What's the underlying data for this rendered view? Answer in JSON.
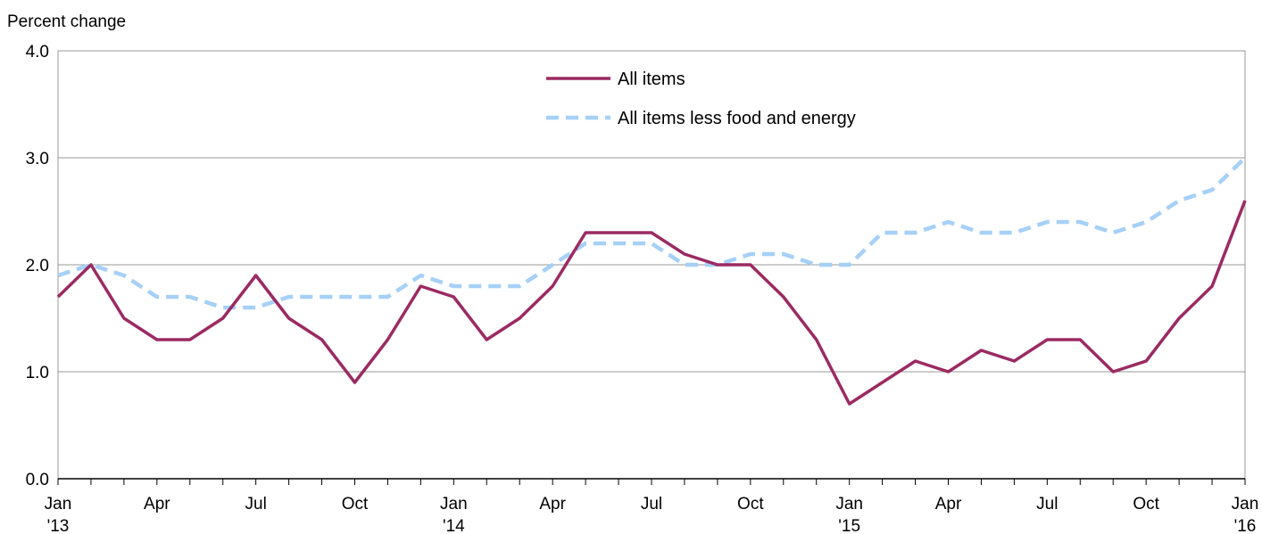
{
  "chart_data": {
    "type": "line",
    "ylabel": "Percent change",
    "ylim": [
      0,
      4
    ],
    "yticks": [
      "0.0",
      "1.0",
      "2.0",
      "3.0",
      "4.0"
    ],
    "grid": true,
    "legend_position": "top-center",
    "x_tick_labels": [
      {
        "index": 0,
        "line1": "Jan",
        "line2": "'13"
      },
      {
        "index": 3,
        "line1": "Apr",
        "line2": ""
      },
      {
        "index": 6,
        "line1": "Jul",
        "line2": ""
      },
      {
        "index": 9,
        "line1": "Oct",
        "line2": ""
      },
      {
        "index": 12,
        "line1": "Jan",
        "line2": "'14"
      },
      {
        "index": 15,
        "line1": "Apr",
        "line2": ""
      },
      {
        "index": 18,
        "line1": "Jul",
        "line2": ""
      },
      {
        "index": 21,
        "line1": "Oct",
        "line2": ""
      },
      {
        "index": 24,
        "line1": "Jan",
        "line2": "'15"
      },
      {
        "index": 27,
        "line1": "Apr",
        "line2": ""
      },
      {
        "index": 30,
        "line1": "Jul",
        "line2": ""
      },
      {
        "index": 33,
        "line1": "Oct",
        "line2": ""
      },
      {
        "index": 36,
        "line1": "Jan",
        "line2": "'16"
      }
    ],
    "x": [
      "2013-01",
      "2013-02",
      "2013-03",
      "2013-04",
      "2013-05",
      "2013-06",
      "2013-07",
      "2013-08",
      "2013-09",
      "2013-10",
      "2013-11",
      "2013-12",
      "2014-01",
      "2014-02",
      "2014-03",
      "2014-04",
      "2014-05",
      "2014-06",
      "2014-07",
      "2014-08",
      "2014-09",
      "2014-10",
      "2014-11",
      "2014-12",
      "2015-01",
      "2015-02",
      "2015-03",
      "2015-04",
      "2015-05",
      "2015-06",
      "2015-07",
      "2015-08",
      "2015-09",
      "2015-10",
      "2015-11",
      "2015-12",
      "2016-01"
    ],
    "series": [
      {
        "name": "All items",
        "color": "#9b2a62",
        "style": "solid",
        "values": [
          1.7,
          2.0,
          1.5,
          1.3,
          1.3,
          1.5,
          1.9,
          1.5,
          1.3,
          0.9,
          1.3,
          1.8,
          1.7,
          1.3,
          1.5,
          1.8,
          2.3,
          2.3,
          2.3,
          2.1,
          2.0,
          2.0,
          1.7,
          1.3,
          0.7,
          0.9,
          1.1,
          1.0,
          1.2,
          1.1,
          1.3,
          1.3,
          1.0,
          1.1,
          1.5,
          1.8,
          2.6
        ]
      },
      {
        "name": "All items less food and energy",
        "color": "#a6d0f7",
        "style": "dashed",
        "values": [
          1.9,
          2.0,
          1.9,
          1.7,
          1.7,
          1.6,
          1.6,
          1.7,
          1.7,
          1.7,
          1.7,
          1.9,
          1.8,
          1.8,
          1.8,
          2.0,
          2.2,
          2.2,
          2.2,
          2.0,
          2.0,
          2.1,
          2.1,
          2.0,
          2.0,
          2.3,
          2.3,
          2.4,
          2.3,
          2.3,
          2.4,
          2.4,
          2.3,
          2.4,
          2.6,
          2.7,
          3.0
        ]
      }
    ]
  }
}
